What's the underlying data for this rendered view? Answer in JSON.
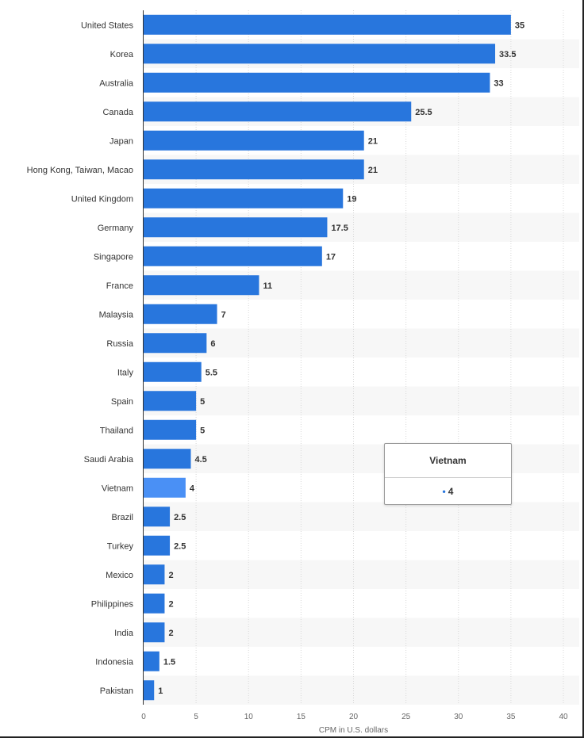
{
  "chart_data": {
    "type": "bar",
    "orientation": "horizontal",
    "categories": [
      "United States",
      "Korea",
      "Australia",
      "Canada",
      "Japan",
      "Hong Kong, Taiwan, Macao",
      "United Kingdom",
      "Germany",
      "Singapore",
      "France",
      "Malaysia",
      "Russia",
      "Italy",
      "Spain",
      "Thailand",
      "Saudi Arabia",
      "Vietnam",
      "Brazil",
      "Turkey",
      "Mexico",
      "Philippines",
      "India",
      "Indonesia",
      "Pakistan"
    ],
    "values": [
      35,
      33.5,
      33,
      25.5,
      21,
      21,
      19,
      17.5,
      17,
      11,
      7,
      6,
      5.5,
      5,
      5,
      4.5,
      4,
      2.5,
      2.5,
      2,
      2,
      2,
      1.5,
      1
    ],
    "value_labels": [
      "35",
      "33.5",
      "33",
      "25.5",
      "21",
      "21",
      "19",
      "17.5",
      "17",
      "11",
      "7",
      "6",
      "5.5",
      "5",
      "5",
      "4.5",
      "4",
      "2.5",
      "2.5",
      "2",
      "2",
      "2",
      "1.5",
      "1"
    ],
    "xlabel": "CPM in U.S. dollars",
    "ylabel": "",
    "title": "",
    "xlim": [
      0,
      40
    ],
    "xticks": [
      0,
      5,
      10,
      15,
      20,
      25,
      30,
      35,
      40
    ],
    "grid": true,
    "highlighted_category": "Vietnam",
    "colors": {
      "bar": "#2876dd",
      "highlight": "#4a90f5",
      "band": "#f7f7f7",
      "grid": "#d8d8d8",
      "axis": "#333333"
    }
  },
  "tooltip": {
    "title": "Vietnam",
    "marker": "•",
    "value": "4"
  }
}
